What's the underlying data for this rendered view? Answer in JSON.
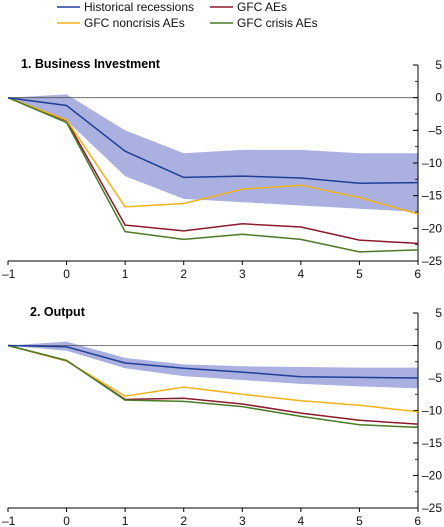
{
  "legend": [
    {
      "name": "Historical recessions",
      "color": "#1f3f97"
    },
    {
      "name": "GFC AEs",
      "color": "#8b1a2e"
    },
    {
      "name": "GFC noncrisis AEs",
      "color": "#f2b21b"
    },
    {
      "name": "GFC crisis AEs",
      "color": "#4c7a26"
    }
  ],
  "chart_data": [
    {
      "type": "line",
      "title": "1. Business Investment",
      "x": [
        -1,
        0,
        1,
        2,
        3,
        4,
        5,
        6
      ],
      "xlim": [
        -1,
        6
      ],
      "ylim": [
        -25,
        5
      ],
      "y_ticks": [
        5,
        0,
        -5,
        -10,
        -15,
        -20,
        -25
      ],
      "y_axis_side": "right",
      "band": {
        "series": "Historical recessions",
        "color": "#aab0e0",
        "upper": [
          0,
          0.5,
          -5,
          -8.5,
          -8,
          -8,
          -8.5,
          -8.5
        ],
        "lower": [
          0,
          -3.5,
          -12,
          -15.5,
          -16,
          -16.5,
          -17,
          -17.5
        ]
      },
      "series": [
        {
          "name": "Historical recessions",
          "color": "#1f3f97",
          "values": [
            0,
            -1.2,
            -8.2,
            -12.2,
            -12,
            -12.3,
            -13.1,
            -13
          ]
        },
        {
          "name": "GFC AEs",
          "color": "#8b1a2e",
          "values": [
            0,
            -3.5,
            -19.5,
            -20.4,
            -19.3,
            -19.8,
            -21.8,
            -22.3
          ]
        },
        {
          "name": "GFC noncrisis AEs",
          "color": "#f2b21b",
          "values": [
            0,
            -3.4,
            -16.7,
            -16.2,
            -14,
            -13.4,
            -15.3,
            -17.8
          ]
        },
        {
          "name": "GFC crisis AEs",
          "color": "#4c7a26",
          "values": [
            0,
            -3.8,
            -20.5,
            -21.7,
            -20.9,
            -21.7,
            -23.6,
            -23.3
          ]
        }
      ]
    },
    {
      "type": "line",
      "title": "2. Output",
      "x": [
        -1,
        0,
        1,
        2,
        3,
        4,
        5,
        6
      ],
      "xlim": [
        -1,
        6
      ],
      "ylim": [
        -25,
        5
      ],
      "y_ticks": [
        5,
        0,
        -5,
        -10,
        -15,
        -20,
        -25
      ],
      "y_axis_side": "right",
      "band": {
        "series": "Historical recessions",
        "color": "#aab0e0",
        "upper": [
          0,
          0.6,
          -1.9,
          -2.9,
          -3.2,
          -3.3,
          -3.4,
          -3.4
        ],
        "lower": [
          0,
          -0.8,
          -3.5,
          -4.7,
          -5.3,
          -5.9,
          -6.3,
          -6.6
        ]
      },
      "series": [
        {
          "name": "Historical recessions",
          "color": "#1f3f97",
          "values": [
            0,
            -0.2,
            -2.7,
            -3.5,
            -4.1,
            -4.8,
            -4.9,
            -5
          ]
        },
        {
          "name": "GFC AEs",
          "color": "#8b1a2e",
          "values": [
            0,
            -2.3,
            -8.3,
            -8.1,
            -9,
            -10.4,
            -11.5,
            -12.1
          ]
        },
        {
          "name": "GFC noncrisis AEs",
          "color": "#f2b21b",
          "values": [
            0,
            -2.4,
            -7.8,
            -6.4,
            -7.5,
            -8.5,
            -9.2,
            -10.2
          ]
        },
        {
          "name": "GFC crisis AEs",
          "color": "#4c7a26",
          "values": [
            0,
            -2.3,
            -8.4,
            -8.6,
            -9.4,
            -10.9,
            -12.2,
            -12.6
          ]
        }
      ]
    }
  ]
}
